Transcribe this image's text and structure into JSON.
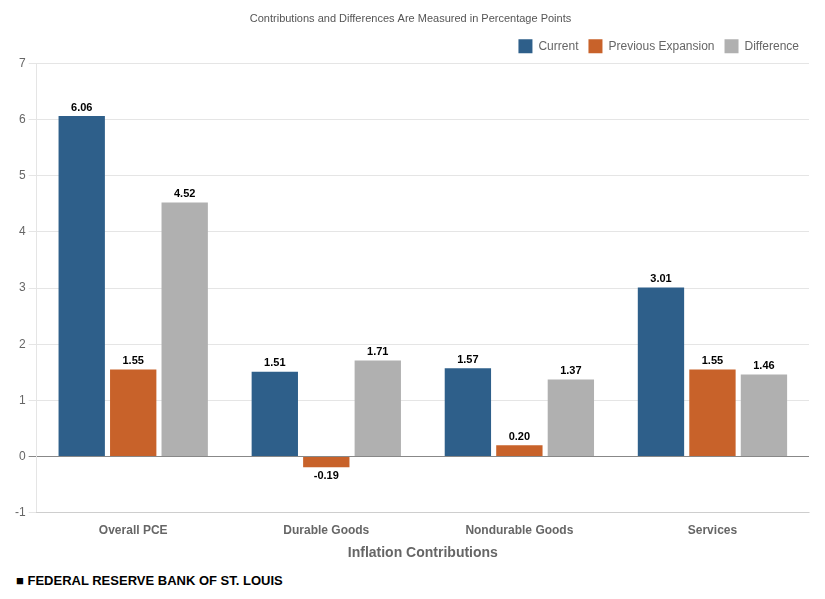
{
  "chart_data": {
    "type": "bar",
    "subtitle": "Contributions and Differences Are Measured in Percentage Points",
    "xlabel": "Inflation Contributions",
    "annotations": [
      "■  FEDERAL RESERVE BANK OF ST. LOUIS"
    ],
    "categories": [
      "Overall PCE",
      "Durable Goods",
      "Nondurable Goods",
      "Services"
    ],
    "series": [
      {
        "name": "Current",
        "color": "#2e5f8a",
        "values": [
          6.06,
          1.51,
          1.57,
          3.01
        ],
        "value_labels": [
          "6.06",
          "1.51",
          "1.57",
          "3.01"
        ]
      },
      {
        "name": "Previous Expansion",
        "color": "#c8622a",
        "values": [
          1.55,
          -0.19,
          0.2,
          1.55
        ],
        "value_labels": [
          "1.55",
          "-0.19",
          "0.20",
          "1.55"
        ]
      },
      {
        "name": "Difference",
        "color": "#b0b0b0",
        "values": [
          4.52,
          1.71,
          1.37,
          1.46
        ],
        "value_labels": [
          "4.52",
          "1.71",
          "1.37",
          "1.46"
        ]
      }
    ],
    "ylim": [
      -1,
      7
    ],
    "yticks": [
      -1,
      0,
      1,
      2,
      3,
      4,
      5,
      6,
      7
    ],
    "grid": true,
    "legend": "upper right",
    "data_labels": true
  }
}
